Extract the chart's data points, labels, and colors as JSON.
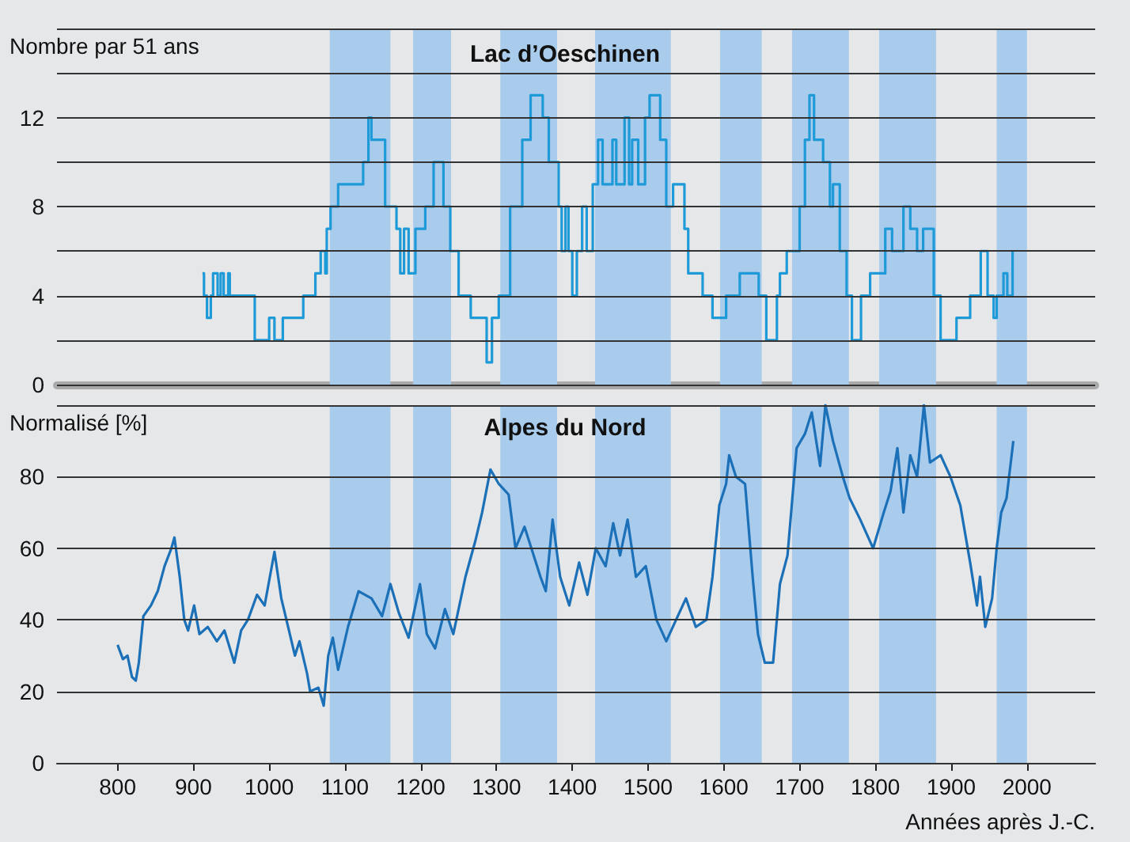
{
  "chart_data": [
    {
      "type": "step",
      "title": "Lac d’Oeschinen",
      "ylabel": "Nombre par 51 ans",
      "xlim": [
        720,
        2090
      ],
      "xticks": [
        800,
        900,
        1000,
        1100,
        1200,
        1300,
        1400,
        1500,
        1600,
        1700,
        1800,
        1900,
        2000
      ],
      "ylim": [
        0,
        16
      ],
      "yticks": [
        0,
        {
          "value": 2,
          "label": null
        },
        4,
        {
          "value": 6,
          "label": null
        },
        8,
        {
          "value": 10,
          "label": null
        },
        12,
        {
          "value": 14,
          "label": null
        },
        {
          "value": 16,
          "label": null
        }
      ],
      "tick_labels": "y",
      "grid": "y",
      "bands": [
        {
          "axis": "x",
          "from": 1080,
          "to": 1160,
          "color": "#a9cbec"
        },
        {
          "axis": "x",
          "from": 1190,
          "to": 1240,
          "color": "#a9cbec"
        },
        {
          "axis": "x",
          "from": 1305,
          "to": 1380,
          "color": "#a9cbec"
        },
        {
          "axis": "x",
          "from": 1430,
          "to": 1530,
          "color": "#a9cbec"
        },
        {
          "axis": "x",
          "from": 1595,
          "to": 1650,
          "color": "#a9cbec"
        },
        {
          "axis": "x",
          "from": 1690,
          "to": 1765,
          "color": "#a9cbec"
        },
        {
          "axis": "x",
          "from": 1805,
          "to": 1880,
          "color": "#a9cbec"
        },
        {
          "axis": "x",
          "from": 1960,
          "to": 2000,
          "color": "#a9cbec"
        }
      ],
      "series": [
        {
          "color": "#1e9ad8",
          "x": [
            912,
            914,
            918,
            923,
            926,
            932,
            936,
            940,
            946,
            948,
            981,
            1000,
            1007,
            1018,
            1045,
            1061,
            1068,
            1074,
            1076,
            1081,
            1091,
            1109,
            1124,
            1131,
            1135,
            1144,
            1153,
            1168,
            1173,
            1178,
            1184,
            1193,
            1206,
            1217,
            1224,
            1230,
            1239,
            1250,
            1266,
            1287,
            1294,
            1303,
            1318,
            1334,
            1345,
            1353,
            1361,
            1369,
            1382,
            1386,
            1391,
            1395,
            1400,
            1406,
            1413,
            1419,
            1427,
            1434,
            1440,
            1453,
            1458,
            1469,
            1475,
            1479,
            1487,
            1496,
            1502,
            1510,
            1516,
            1524,
            1533,
            1548,
            1553,
            1572,
            1585,
            1603,
            1621,
            1638,
            1646,
            1656,
            1665,
            1670,
            1674,
            1683,
            1700,
            1707,
            1713,
            1719,
            1731,
            1740,
            1744,
            1753,
            1762,
            1769,
            1778,
            1781,
            1793,
            1813,
            1822,
            1837,
            1846,
            1855,
            1863,
            1877,
            1886,
            1903,
            1907,
            1925,
            1939,
            1948,
            1956,
            1960,
            1969,
            1974,
            1981
          ],
          "values": [
            5,
            4,
            3,
            4,
            5,
            4,
            5,
            4,
            5,
            4,
            2,
            3,
            2,
            3,
            4,
            5,
            6,
            5,
            7,
            8,
            9,
            9,
            10,
            12,
            11,
            11,
            8,
            7,
            5,
            7,
            5,
            7,
            8,
            10,
            10,
            8,
            6,
            4,
            3,
            1,
            3,
            4,
            8,
            11,
            13,
            13,
            12,
            10,
            8,
            6,
            8,
            6,
            4,
            6,
            8,
            6,
            9,
            11,
            9,
            11,
            9,
            12,
            9,
            11,
            9,
            12,
            13,
            13,
            11,
            8,
            9,
            7,
            5,
            4,
            3,
            4,
            5,
            5,
            4,
            2,
            2,
            4,
            5,
            6,
            8,
            11,
            13,
            11,
            10,
            8,
            9,
            6,
            4,
            2,
            2,
            4,
            5,
            7,
            6,
            8,
            7,
            6,
            7,
            4,
            2,
            2,
            3,
            4,
            6,
            4,
            3,
            4,
            5,
            4,
            6
          ]
        }
      ]
    },
    {
      "type": "line",
      "title": "Alpes du Nord",
      "ylabel": "Normalisé [%]",
      "xlabel": "Années après J.-C.",
      "xlim": [
        720,
        2090
      ],
      "xticks": [
        800,
        900,
        1000,
        1100,
        1200,
        1300,
        1400,
        1500,
        1600,
        1700,
        1800,
        1900,
        2000
      ],
      "ylim": [
        0,
        100
      ],
      "yticks": [
        0,
        20,
        40,
        60,
        80,
        {
          "value": 100,
          "label": null
        }
      ],
      "grid": "y",
      "bands": [
        {
          "axis": "x",
          "from": 1080,
          "to": 1160,
          "color": "#a9cbec"
        },
        {
          "axis": "x",
          "from": 1190,
          "to": 1240,
          "color": "#a9cbec"
        },
        {
          "axis": "x",
          "from": 1305,
          "to": 1380,
          "color": "#a9cbec"
        },
        {
          "axis": "x",
          "from": 1430,
          "to": 1530,
          "color": "#a9cbec"
        },
        {
          "axis": "x",
          "from": 1595,
          "to": 1650,
          "color": "#a9cbec"
        },
        {
          "axis": "x",
          "from": 1690,
          "to": 1765,
          "color": "#a9cbec"
        },
        {
          "axis": "x",
          "from": 1805,
          "to": 1880,
          "color": "#a9cbec"
        },
        {
          "axis": "x",
          "from": 1960,
          "to": 2000,
          "color": "#a9cbec"
        }
      ],
      "series": [
        {
          "color": "#1b70b8",
          "x": [
            800,
            807,
            813,
            819,
            824,
            828,
            834,
            844,
            853,
            862,
            871,
            875,
            882,
            888,
            893,
            901,
            908,
            919,
            931,
            941,
            954,
            963,
            972,
            984,
            994,
            1007,
            1016,
            1025,
            1034,
            1040,
            1050,
            1054,
            1065,
            1072,
            1078,
            1084,
            1091,
            1104,
            1118,
            1135,
            1149,
            1160,
            1171,
            1184,
            1199,
            1208,
            1219,
            1232,
            1243,
            1259,
            1272,
            1281,
            1292,
            1303,
            1316,
            1325,
            1337,
            1349,
            1358,
            1365,
            1374,
            1384,
            1396,
            1409,
            1420,
            1431,
            1444,
            1454,
            1463,
            1473,
            1484,
            1497,
            1511,
            1524,
            1537,
            1550,
            1563,
            1577,
            1585,
            1594,
            1603,
            1607,
            1616,
            1628,
            1638,
            1645,
            1654,
            1665,
            1674,
            1684,
            1696,
            1707,
            1716,
            1727,
            1734,
            1744,
            1757,
            1766,
            1780,
            1797,
            1811,
            1820,
            1829,
            1837,
            1846,
            1855,
            1864,
            1872,
            1886,
            1899,
            1912,
            1925,
            1934,
            1938,
            1945,
            1954,
            1960,
            1966,
            1973,
            1982
          ],
          "values": [
            33,
            29,
            30,
            24,
            23,
            28,
            41,
            44,
            48,
            55,
            60,
            63,
            52,
            40,
            37,
            44,
            36,
            38,
            34,
            37,
            28,
            37,
            40,
            47,
            44,
            59,
            46,
            38,
            30,
            34,
            25,
            20,
            21,
            16,
            30,
            35,
            26,
            38,
            48,
            46,
            41,
            50,
            42,
            35,
            50,
            36,
            32,
            43,
            36,
            52,
            62,
            70,
            82,
            78,
            75,
            60,
            66,
            58,
            52,
            48,
            68,
            52,
            44,
            56,
            47,
            60,
            55,
            67,
            58,
            68,
            52,
            55,
            40,
            34,
            40,
            46,
            38,
            40,
            52,
            72,
            78,
            86,
            80,
            78,
            52,
            36,
            28,
            28,
            50,
            58,
            88,
            92,
            98,
            83,
            100,
            90,
            80,
            74,
            68,
            60,
            70,
            76,
            88,
            70,
            86,
            80,
            100,
            84,
            86,
            80,
            72,
            56,
            44,
            52,
            38,
            46,
            60,
            70,
            74,
            90
          ]
        }
      ]
    }
  ]
}
